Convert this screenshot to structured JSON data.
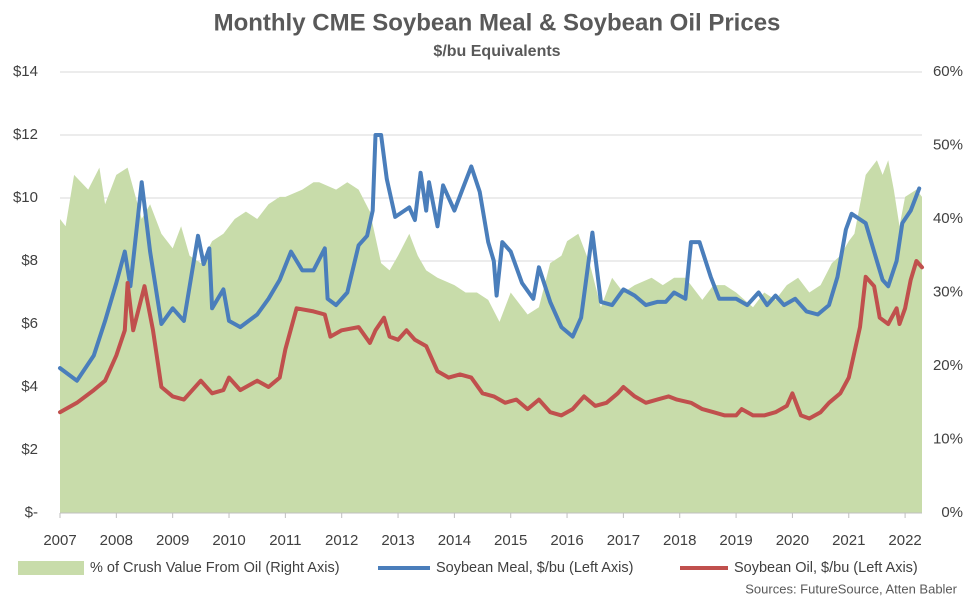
{
  "chart_data": {
    "type": "line",
    "title": "Monthly CME Soybean Meal & Soybean Oil Prices",
    "subtitle": "$/bu Equivalents",
    "source": "Sources: FutureSource, Atten Babler",
    "xlim": [
      2007,
      2022.3
    ],
    "xticks": [
      2007,
      2008,
      2009,
      2010,
      2011,
      2012,
      2013,
      2014,
      2015,
      2016,
      2017,
      2018,
      2019,
      2020,
      2021,
      2022
    ],
    "ylim": [
      0,
      14
    ],
    "yticks": [
      {
        "value": 0,
        "label": "$-"
      },
      {
        "value": 2,
        "label": "$2"
      },
      {
        "value": 4,
        "label": "$4"
      },
      {
        "value": 6,
        "label": "$6"
      },
      {
        "value": 8,
        "label": "$8"
      },
      {
        "value": 10,
        "label": "$10"
      },
      {
        "value": 12,
        "label": "$12"
      },
      {
        "value": 14,
        "label": "$14"
      }
    ],
    "y2lim": [
      0,
      60
    ],
    "y2ticks": [
      {
        "value": 0,
        "label": "0%"
      },
      {
        "value": 10,
        "label": "10%"
      },
      {
        "value": 20,
        "label": "20%"
      },
      {
        "value": 30,
        "label": "30%"
      },
      {
        "value": 40,
        "label": "40%"
      },
      {
        "value": 50,
        "label": "50%"
      },
      {
        "value": 60,
        "label": "60%"
      }
    ],
    "grid": true,
    "legend": "bottom",
    "series": [
      {
        "name": "% of Crush Value From Oil (Right Axis)",
        "type": "area",
        "axis": "y2",
        "color": "#c8dcaa",
        "x": [
          2007.0,
          2007.1,
          2007.25,
          2007.5,
          2007.7,
          2007.8,
          2008.0,
          2008.2,
          2008.45,
          2008.6,
          2008.8,
          2009.0,
          2009.15,
          2009.3,
          2009.5,
          2009.7,
          2009.9,
          2010.1,
          2010.3,
          2010.5,
          2010.7,
          2010.9,
          2011.0,
          2011.3,
          2011.5,
          2011.6,
          2011.9,
          2012.1,
          2012.3,
          2012.5,
          2012.7,
          2012.85,
          2013.0,
          2013.2,
          2013.35,
          2013.5,
          2013.7,
          2014.0,
          2014.2,
          2014.4,
          2014.6,
          2014.8,
          2015.0,
          2015.3,
          2015.5,
          2015.7,
          2015.9,
          2016.0,
          2016.2,
          2016.4,
          2016.6,
          2016.8,
          2017.0,
          2017.2,
          2017.5,
          2017.7,
          2017.9,
          2018.1,
          2018.2,
          2018.4,
          2018.6,
          2018.8,
          2019.0,
          2019.3,
          2019.5,
          2019.7,
          2019.9,
          2020.1,
          2020.3,
          2020.5,
          2020.7,
          2020.85,
          2021.0,
          2021.1,
          2021.3,
          2021.5,
          2021.6,
          2021.7,
          2021.8,
          2021.9,
          2022.0,
          2022.2,
          2022.3
        ],
        "values": [
          40,
          39,
          46,
          44,
          47,
          42,
          46,
          47,
          40,
          42,
          38,
          36,
          39,
          35,
          34,
          37,
          38,
          40,
          41,
          40,
          42,
          43,
          43,
          44,
          45,
          45,
          44,
          45,
          44,
          41,
          34,
          33,
          35,
          38,
          35,
          33,
          32,
          31,
          30,
          30,
          29,
          26,
          30,
          27,
          28,
          34,
          35,
          37,
          38,
          34,
          28,
          32,
          30,
          31,
          32,
          31,
          32,
          32,
          31,
          29,
          31,
          31,
          30,
          28,
          30,
          29,
          31,
          32,
          30,
          31,
          34,
          35,
          37,
          38,
          46,
          48,
          46,
          48,
          44,
          39,
          43,
          44,
          43
        ]
      },
      {
        "name": "Soybean Meal, $/bu (Left Axis)",
        "type": "line",
        "color": "#4a7ebb",
        "x": [
          2007.0,
          2007.3,
          2007.6,
          2007.8,
          2008.0,
          2008.15,
          2008.25,
          2008.45,
          2008.6,
          2008.8,
          2009.0,
          2009.2,
          2009.45,
          2009.55,
          2009.65,
          2009.7,
          2009.9,
          2010.0,
          2010.2,
          2010.5,
          2010.7,
          2010.9,
          2011.1,
          2011.3,
          2011.5,
          2011.7,
          2011.75,
          2011.9,
          2012.1,
          2012.3,
          2012.45,
          2012.55,
          2012.6,
          2012.7,
          2012.8,
          2012.95,
          2013.2,
          2013.3,
          2013.4,
          2013.5,
          2013.55,
          2013.7,
          2013.8,
          2014.0,
          2014.15,
          2014.3,
          2014.45,
          2014.6,
          2014.7,
          2014.75,
          2014.85,
          2015.0,
          2015.2,
          2015.4,
          2015.5,
          2015.7,
          2015.9,
          2016.1,
          2016.25,
          2016.45,
          2016.6,
          2016.8,
          2017.0,
          2017.2,
          2017.4,
          2017.6,
          2017.75,
          2017.9,
          2018.1,
          2018.2,
          2018.35,
          2018.55,
          2018.7,
          2018.85,
          2019.0,
          2019.2,
          2019.4,
          2019.55,
          2019.7,
          2019.85,
          2020.05,
          2020.25,
          2020.45,
          2020.65,
          2020.8,
          2020.95,
          2021.05,
          2021.3,
          2021.5,
          2021.6,
          2021.7,
          2021.85,
          2021.95,
          2022.1,
          2022.25
        ],
        "values": [
          4.6,
          4.2,
          5.0,
          6.1,
          7.3,
          8.3,
          7.2,
          10.5,
          8.3,
          6.0,
          6.5,
          6.1,
          8.8,
          7.9,
          8.4,
          6.5,
          7.1,
          6.1,
          5.9,
          6.3,
          6.8,
          7.4,
          8.3,
          7.7,
          7.7,
          8.4,
          6.8,
          6.6,
          7.0,
          8.5,
          8.8,
          9.6,
          12.0,
          12.0,
          10.6,
          9.4,
          9.7,
          9.3,
          10.8,
          9.6,
          10.5,
          9.1,
          10.4,
          9.6,
          10.3,
          11.0,
          10.2,
          8.6,
          8.0,
          6.9,
          8.6,
          8.3,
          7.3,
          6.8,
          7.8,
          6.7,
          5.9,
          5.6,
          6.2,
          8.9,
          6.7,
          6.6,
          7.1,
          6.9,
          6.6,
          6.7,
          6.7,
          7.0,
          6.8,
          8.6,
          8.6,
          7.5,
          6.8,
          6.8,
          6.8,
          6.6,
          7.0,
          6.6,
          6.9,
          6.6,
          6.8,
          6.4,
          6.3,
          6.6,
          7.5,
          9.0,
          9.5,
          9.2,
          8.0,
          7.4,
          7.2,
          8.0,
          9.2,
          9.6,
          10.3
        ]
      },
      {
        "name": "Soybean Oil, $/bu (Left Axis)",
        "type": "line",
        "color": "#c0504d",
        "x": [
          2007.0,
          2007.3,
          2007.6,
          2007.8,
          2008.0,
          2008.15,
          2008.2,
          2008.3,
          2008.5,
          2008.65,
          2008.8,
          2009.0,
          2009.2,
          2009.5,
          2009.7,
          2009.9,
          2010.0,
          2010.2,
          2010.5,
          2010.7,
          2010.9,
          2011.0,
          2011.2,
          2011.5,
          2011.7,
          2011.8,
          2012.0,
          2012.3,
          2012.5,
          2012.6,
          2012.75,
          2012.85,
          2013.0,
          2013.15,
          2013.3,
          2013.5,
          2013.7,
          2013.9,
          2014.1,
          2014.3,
          2014.5,
          2014.7,
          2014.9,
          2015.1,
          2015.3,
          2015.5,
          2015.7,
          2015.9,
          2016.1,
          2016.3,
          2016.5,
          2016.7,
          2016.9,
          2017.0,
          2017.2,
          2017.4,
          2017.6,
          2017.8,
          2017.95,
          2018.2,
          2018.4,
          2018.6,
          2018.8,
          2019.0,
          2019.1,
          2019.3,
          2019.5,
          2019.7,
          2019.9,
          2020.0,
          2020.15,
          2020.3,
          2020.5,
          2020.65,
          2020.85,
          2021.0,
          2021.2,
          2021.3,
          2021.45,
          2021.55,
          2021.7,
          2021.85,
          2021.9,
          2022.0,
          2022.1,
          2022.2,
          2022.3
        ],
        "values": [
          3.2,
          3.5,
          3.9,
          4.2,
          5.0,
          5.8,
          7.3,
          5.8,
          7.2,
          5.8,
          4.0,
          3.7,
          3.6,
          4.2,
          3.8,
          3.9,
          4.3,
          3.9,
          4.2,
          4.0,
          4.3,
          5.2,
          6.5,
          6.4,
          6.3,
          5.6,
          5.8,
          5.9,
          5.4,
          5.8,
          6.2,
          5.6,
          5.5,
          5.8,
          5.5,
          5.3,
          4.5,
          4.3,
          4.4,
          4.3,
          3.8,
          3.7,
          3.5,
          3.6,
          3.3,
          3.6,
          3.2,
          3.1,
          3.3,
          3.7,
          3.4,
          3.5,
          3.8,
          4.0,
          3.7,
          3.5,
          3.6,
          3.7,
          3.6,
          3.5,
          3.3,
          3.2,
          3.1,
          3.1,
          3.3,
          3.1,
          3.1,
          3.2,
          3.4,
          3.8,
          3.1,
          3.0,
          3.2,
          3.5,
          3.8,
          4.3,
          5.9,
          7.5,
          7.2,
          6.2,
          6.0,
          6.5,
          6.0,
          6.5,
          7.4,
          8.0,
          7.8
        ]
      }
    ]
  }
}
